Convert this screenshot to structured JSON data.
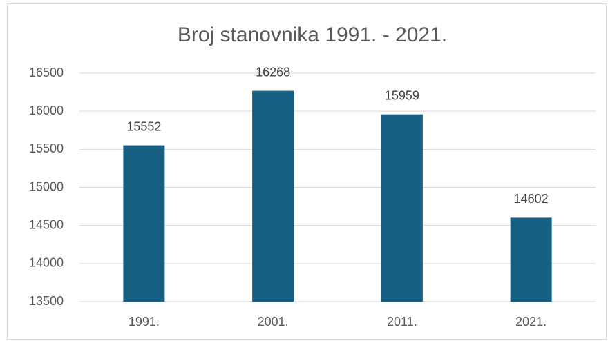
{
  "chart_data": {
    "type": "bar",
    "title": "Broj stanovnika 1991. - 2021.",
    "categories": [
      "1991.",
      "2001.",
      "2011.",
      "2021."
    ],
    "values": [
      15552,
      16268,
      15959,
      14602
    ],
    "color": "#176083",
    "ylim": [
      13500,
      16500
    ],
    "yticks": [
      13500,
      14000,
      14500,
      15000,
      15500,
      16000,
      16500
    ],
    "grid": true
  }
}
